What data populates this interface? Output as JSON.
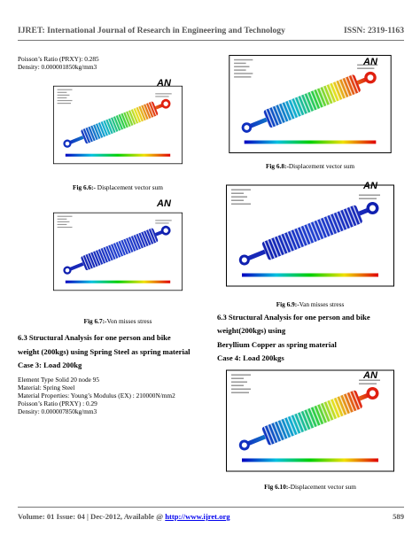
{
  "header": {
    "journal": "IJRET: International Journal of Research in Engineering and Technology",
    "issn": "ISSN: 2319-1163"
  },
  "left_column": {
    "intro_lines": [
      "Poisson’s Ratio (PRXY): 0.285",
      "Density: 0.000001850kg/mm3"
    ],
    "figures": [
      {
        "logo": "AN",
        "label": "Fig 6.6:-",
        "caption": " Displacement vector sum"
      },
      {
        "logo": "AN",
        "label": "Fig 6.7:-",
        "caption": "Von misses stress"
      }
    ],
    "section": {
      "heading_lines": [
        "6.3 Structural Analysis for one person and bike",
        "weight (200kgs) using Spring Steel as spring material"
      ],
      "case": "Case 3: Load 200kg",
      "lines": [
        "Element Type Solid 20 node 95",
        "Material: Spring Steel",
        "Material Properties: Young’s Modulus (EX) : 210000N/mm2",
        "Poisson’s Ratio (PRXY) : 0.29",
        "Density: 0.000007850kg/mm3"
      ]
    }
  },
  "right_column": {
    "figures": [
      {
        "logo": "AN",
        "label": "Fig 6.8:-",
        "caption": "Displacement vector sum"
      },
      {
        "logo": "AN",
        "label": "Fig 6.9:-",
        "caption": "Van misses stress"
      },
      {
        "logo": "AN",
        "label": "Fig 6.10:-",
        "caption": "Displacement vector sum"
      }
    ],
    "section": {
      "heading_lines": [
        "6.3 Structural Analysis for one person and bike",
        "weight(200kgs) using",
        "Beryllium Copper as spring material"
      ],
      "case": "Case 4: Load 200kgs"
    }
  },
  "footer": {
    "text": "Volume: 01 Issue: 04 | Dec-2012, Available @ ",
    "link": "http://www.ijret.org",
    "page": "589"
  }
}
